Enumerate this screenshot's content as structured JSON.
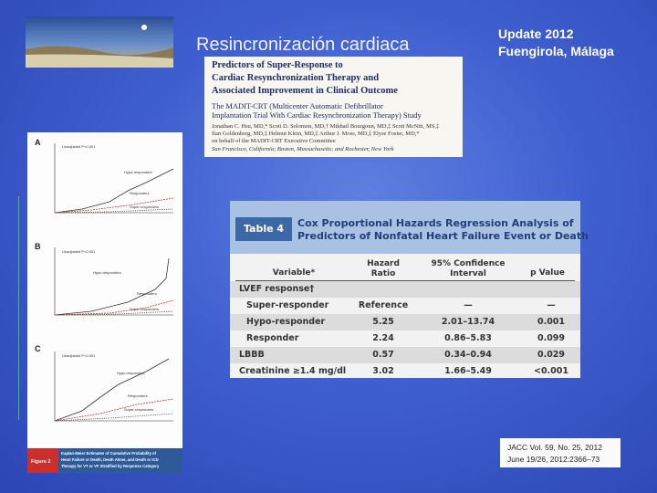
{
  "header": {
    "title": "Resincronización cardiaca",
    "update": "Update 2012",
    "place": "Fuengirola, Málaga"
  },
  "paper": {
    "title_lines": [
      "Predictors of Super-Response to",
      "Cardiac Resynchronization Therapy and",
      "Associated Improvement in Clinical Outcome"
    ],
    "subtitle_lines": [
      "The MADIT-CRT (Multicenter Automatic Defibrillator",
      "Implantation Trial With Cardiac Resynchronization Therapy) Study"
    ],
    "author_lines": [
      "Jonathan C. Hsu, MD,* Scott D. Solomon, MD,† Mikhail Bourgoun, MD,‡ Scott McNitt, MS,‡",
      "Ilan Goldenberg, MD,‡ Helmut Klein, MD,‡ Arthur J. Moss, MD,‡ Elyse Foster, MD,*",
      "on behalf of the MADIT-CRT Executive Committee",
      "San Francisco, California; Boston, Massachusetts; and Rochester, New York"
    ]
  },
  "table": {
    "label": "Table 4",
    "title_lines": [
      "Cox Proportional Hazards Regression Analysis of",
      "Predictors of Nonfatal Heart Failure Event or Death"
    ],
    "columns": [
      "Variable*",
      "Hazard Ratio",
      "95% Confidence Interval",
      "p Value"
    ],
    "section": "LVEF response†",
    "rows": [
      [
        "Super-responder",
        "Reference",
        "—",
        "—"
      ],
      [
        "Hypo-responder",
        "5.25",
        "2.01–13.74",
        "0.001"
      ],
      [
        "Responder",
        "2.24",
        "0.86–5.83",
        "0.099"
      ],
      [
        "LBBB",
        "0.57",
        "0.34–0.94",
        "0.029"
      ],
      [
        "Creatinine ≥1.4 mg/dl",
        "3.02",
        "1.66–5.49",
        "<0.001"
      ]
    ]
  },
  "figure": {
    "panels": [
      "A",
      "B",
      "C"
    ],
    "pvalue": "Unadjusted P<0.001",
    "groups": [
      "Hypo-responders",
      "Responders",
      "Super-responders"
    ],
    "label": "Figure 2",
    "caption_lines": [
      "Kaplan-Meier Estimates of Cumulative Probability of",
      "Heart Failure or Death, Death Alone, and Death or ICD",
      "Therapy for VT or VF Stratified by Response Category"
    ]
  },
  "citation": [
    "JACC Vol. 59, No. 25, 2012",
    "June 19/26, 2012:2366–73"
  ]
}
